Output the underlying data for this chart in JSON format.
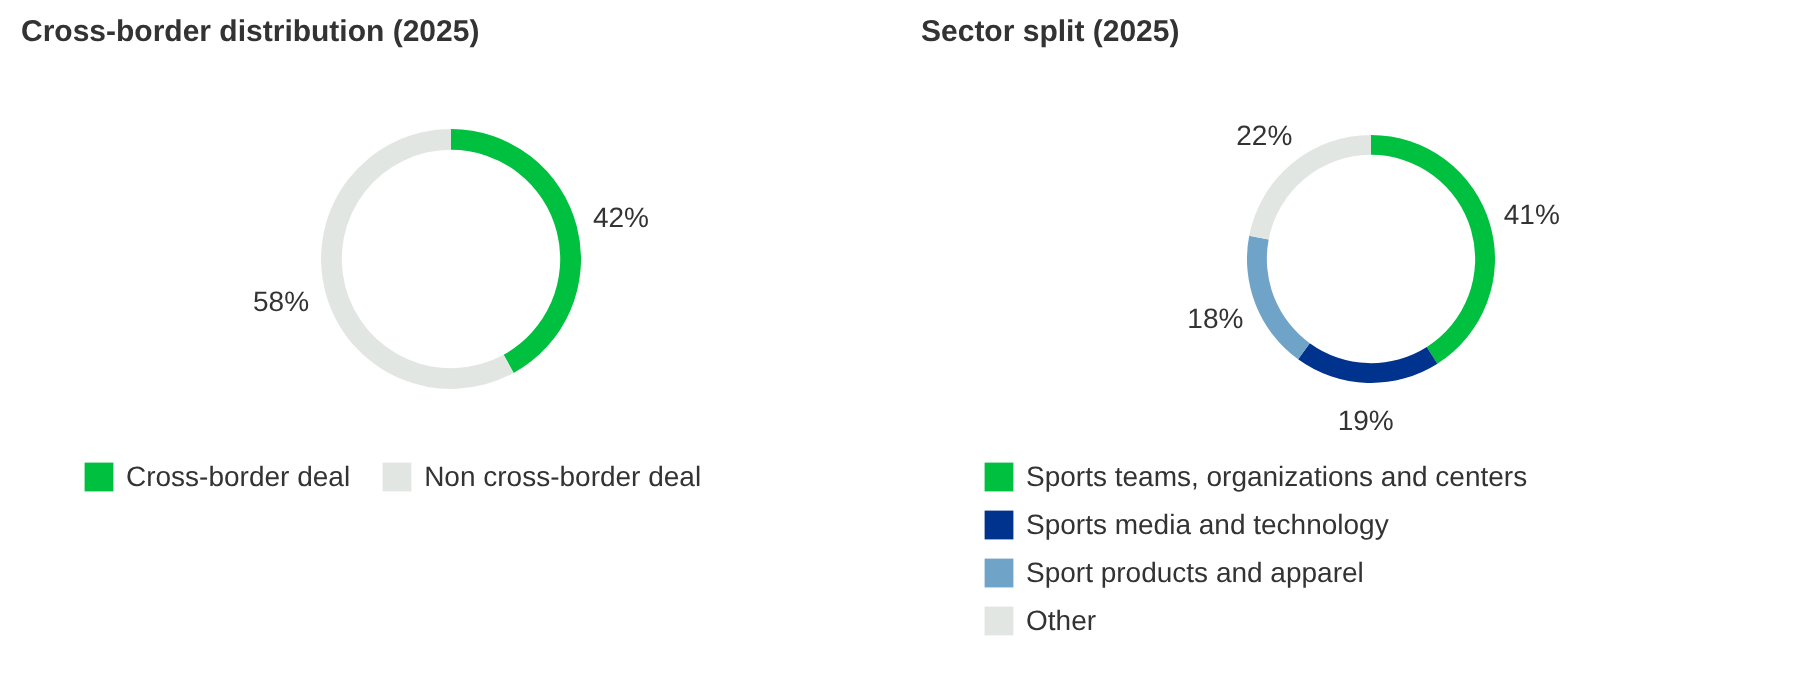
{
  "chart_data": [
    {
      "type": "donut",
      "title": "Cross-border distribution (2025)",
      "categories": [
        "Cross-border deal",
        "Non cross-border deal"
      ],
      "values": [
        42,
        58
      ],
      "colors": [
        "#00c13f",
        "#e1e6e3"
      ],
      "value_labels": [
        "42%",
        "58%"
      ],
      "legend": "bottom"
    },
    {
      "type": "donut",
      "title": "Sector split (2025)",
      "categories": [
        "Sports teams, organizations and centers",
        "Sports media and technology",
        "Sport products and apparel",
        "Other"
      ],
      "values": [
        41,
        19,
        18,
        22
      ],
      "colors": [
        "#00c13f",
        "#00338d",
        "#6fa3c8",
        "#e1e6e3"
      ],
      "value_labels": [
        "41%",
        "19%",
        "18%",
        "22%"
      ],
      "legend": "bottom"
    }
  ]
}
